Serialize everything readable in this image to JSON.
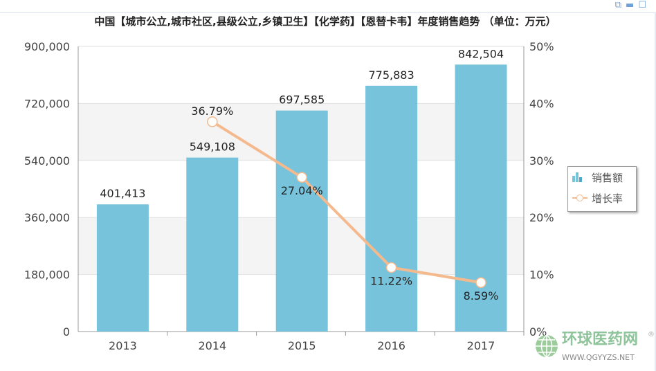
{
  "toolbar": {
    "icons": [
      "layout-icon",
      "minimize-icon",
      "maximize-icon"
    ]
  },
  "watermark": {
    "name": "环球医药网",
    "url": "WWW.QGYYZS.NET",
    "reg": "®"
  },
  "chart_data": {
    "type": "bar+line",
    "title": "中国【城市公立,城市社区,县级公立,乡镇卫生】【化学药】【恩替卡韦】年度销售趋势 （单位：万元）",
    "categories": [
      "2013",
      "2014",
      "2015",
      "2016",
      "2017"
    ],
    "series": [
      {
        "name": "销售额",
        "type": "bar",
        "axis": "left",
        "color": "#77c3dc",
        "values": [
          401413,
          549108,
          697585,
          775883,
          842504
        ],
        "labels": [
          "401,413",
          "549,108",
          "697,585",
          "775,883",
          "842,504"
        ]
      },
      {
        "name": "增长率",
        "type": "line",
        "axis": "right",
        "color": "#f5b98e",
        "values": [
          null,
          36.79,
          27.04,
          11.22,
          8.59
        ],
        "labels": [
          "",
          "36.79%",
          "27.04%",
          "11.22%",
          "8.59%"
        ]
      }
    ],
    "yleft": {
      "range": [
        0,
        900000
      ],
      "ticks": [
        "0",
        "180,000",
        "360,000",
        "540,000",
        "720,000",
        "900,000"
      ]
    },
    "yright": {
      "range": [
        0,
        50
      ],
      "ticks": [
        "0%",
        "10%",
        "20%",
        "30%",
        "40%",
        "50%"
      ]
    },
    "legend": "right"
  }
}
